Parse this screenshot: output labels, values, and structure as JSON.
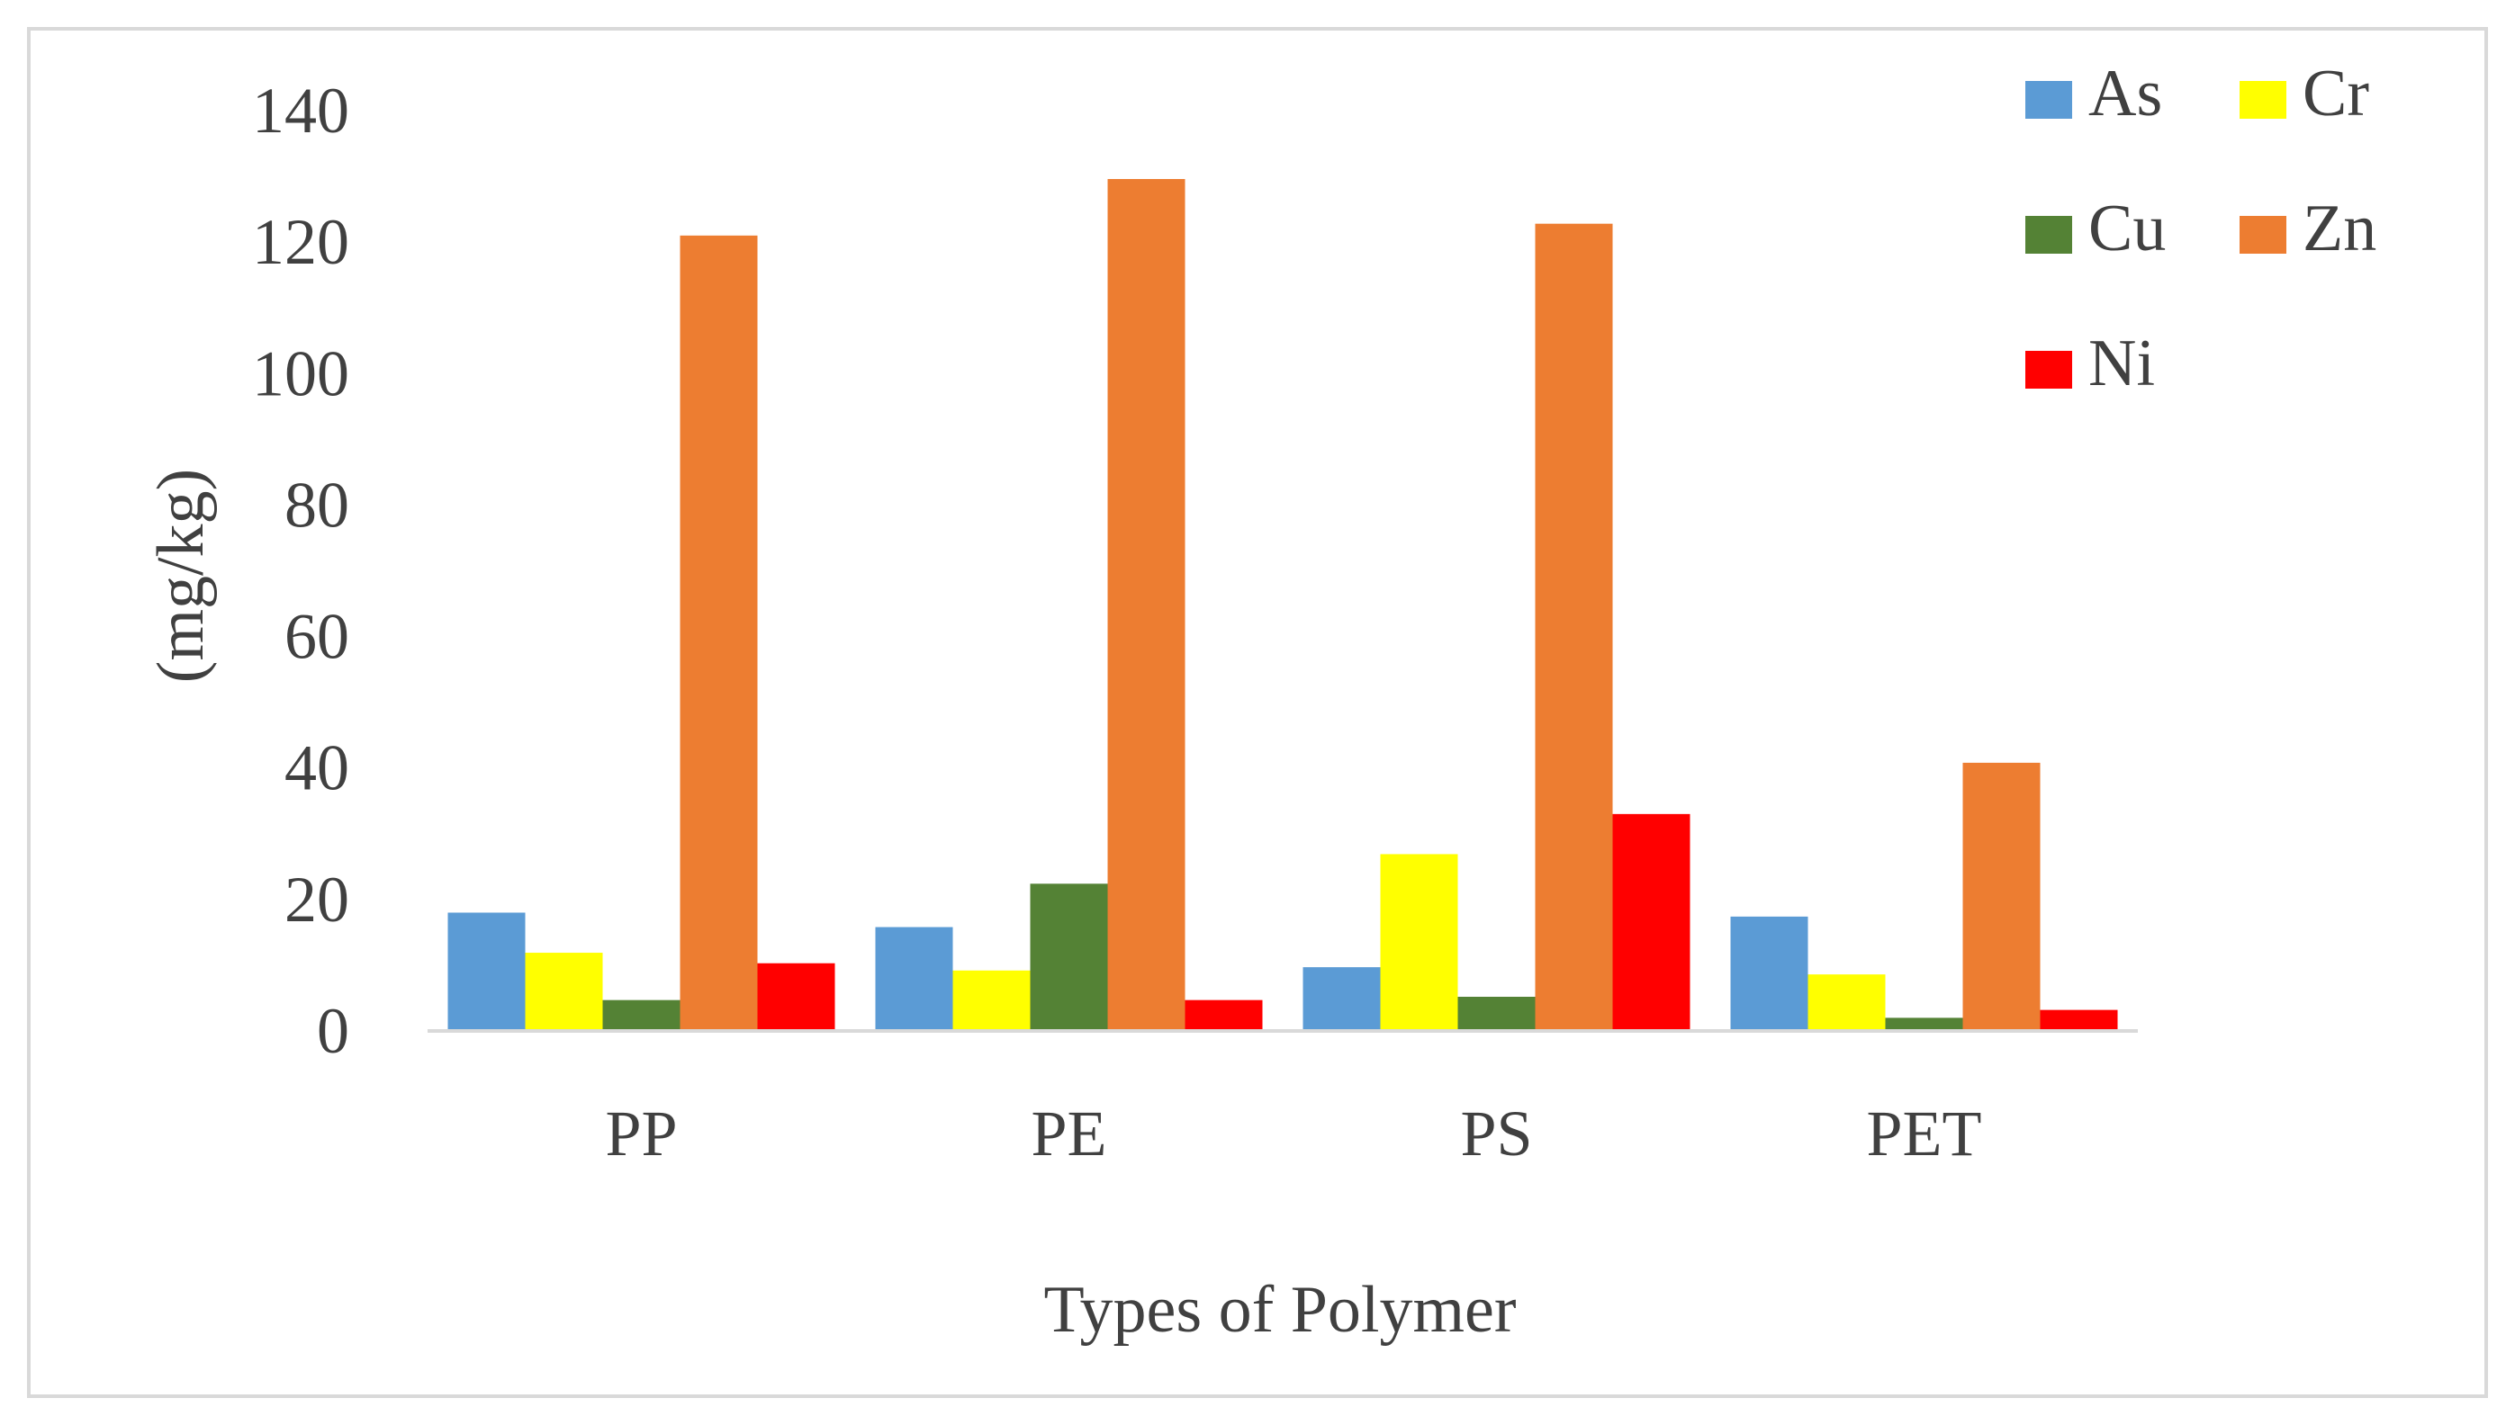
{
  "chart_data": {
    "type": "bar",
    "title": "",
    "xlabel": "Types of Polymer",
    "ylabel": "(mg/kg)",
    "categories": [
      "PP",
      "PE",
      "PS",
      "PET"
    ],
    "ylim": [
      0,
      140
    ],
    "yticks": [
      0,
      20,
      40,
      60,
      80,
      100,
      120,
      140
    ],
    "grid": false,
    "legend_position": "top-right",
    "series": [
      {
        "name": "As",
        "color": "#5b9bd5",
        "values": [
          18,
          15.8,
          9.7,
          17.4
        ]
      },
      {
        "name": "Cr",
        "color": "#ffff00",
        "values": [
          11.9,
          9.2,
          26.9,
          8.6
        ]
      },
      {
        "name": "Cu",
        "color": "#548235",
        "values": [
          4.7,
          22.4,
          5.2,
          2
        ]
      },
      {
        "name": "Zn",
        "color": "#ed7d31",
        "values": [
          121,
          129.6,
          122.8,
          40.8
        ]
      },
      {
        "name": "Ni",
        "color": "#ff0000",
        "values": [
          10.3,
          4.7,
          33,
          3.2
        ]
      }
    ]
  }
}
